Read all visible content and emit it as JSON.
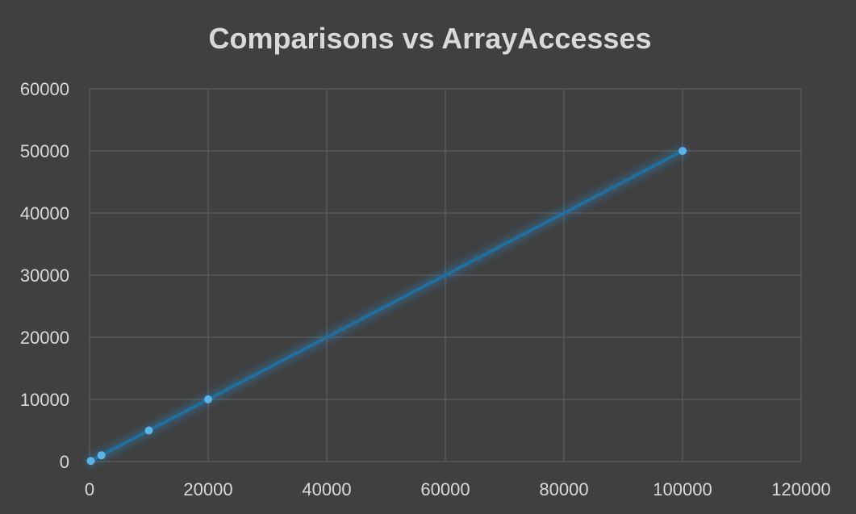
{
  "colors": {
    "background": "#404040",
    "series": "#1f6f9f",
    "marker": "#5ab4ea",
    "glow": "#2a8fd0"
  },
  "chart_data": {
    "type": "scatter",
    "title": "Comparisons vs ArrayAccesses",
    "xlabel": "",
    "ylabel": "",
    "xlim": [
      0,
      120000
    ],
    "ylim": [
      0,
      60000
    ],
    "x_ticks": [
      "0",
      "20000",
      "40000",
      "60000",
      "80000",
      "100000",
      "120000"
    ],
    "y_ticks": [
      "0",
      "10000",
      "20000",
      "30000",
      "40000",
      "50000",
      "60000"
    ],
    "grid": true,
    "legend": "none",
    "lines_connected": true,
    "series": [
      {
        "x": [
          200,
          2000,
          10000,
          20000,
          100000
        ],
        "y": [
          100,
          1000,
          5000,
          10000,
          50000
        ]
      }
    ]
  }
}
